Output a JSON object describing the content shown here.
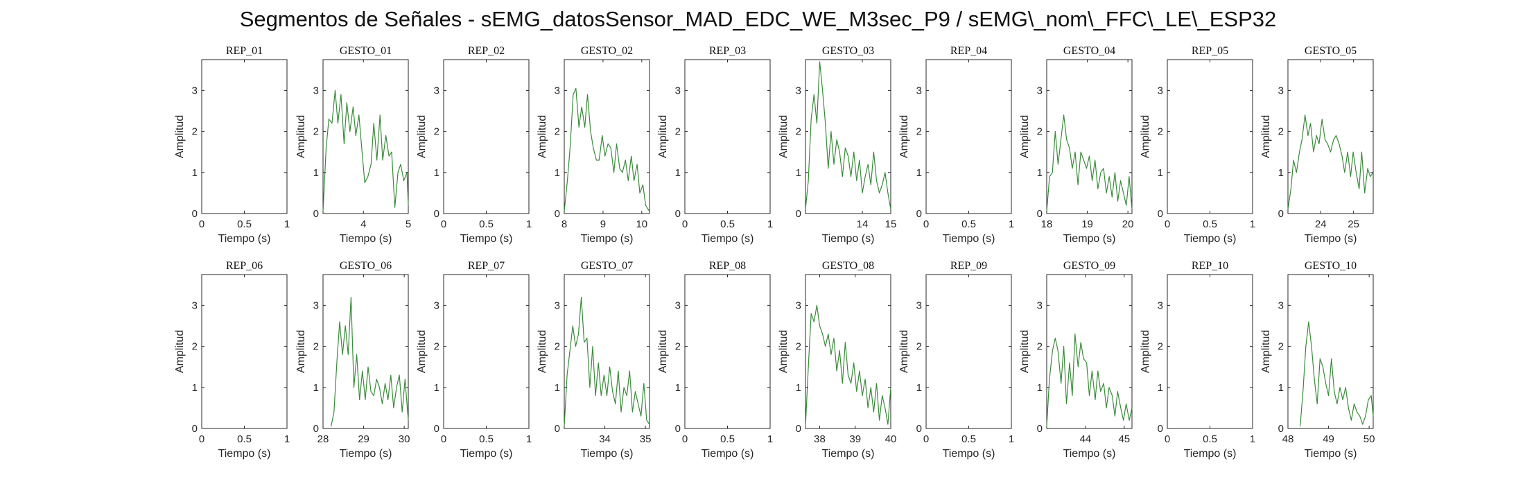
{
  "figure": {
    "title": "Segmentos de Señales - sEMG_datosSensor_MAD_EDC_WE_M3sec_P9 / sEMG\\_nom\\_FFC\\_LE\\_ESP32"
  },
  "colors": {
    "signal": "#3a8a3a",
    "axis": "#262626",
    "text": "#262626",
    "background": "#ffffff"
  },
  "chart_data": [
    {
      "type": "line",
      "title": "REP_01",
      "xlabel": "Tiempo (s)",
      "ylabel": "Amplitud",
      "xlim": [
        0,
        1
      ],
      "ylim": [
        0,
        3.75
      ],
      "xticks": [
        0,
        0.5,
        1
      ],
      "xticklabels": [
        "0",
        "0.5",
        "1"
      ],
      "yticks": [
        0,
        1,
        2,
        3
      ],
      "x": [],
      "y": []
    },
    {
      "type": "line",
      "title": "GESTO_01",
      "xlabel": "Tiempo (s)",
      "ylabel": "Amplitud",
      "xlim": [
        3.1,
        5.0
      ],
      "ylim": [
        0,
        3.75
      ],
      "xticks": [
        4,
        5
      ],
      "xticklabels": [
        "4",
        "5"
      ],
      "yticks": [
        0,
        1,
        2,
        3
      ],
      "x": [
        3.1,
        3.17,
        3.23,
        3.3,
        3.37,
        3.43,
        3.5,
        3.57,
        3.63,
        3.7,
        3.77,
        3.83,
        3.9,
        3.97,
        4.03,
        4.1,
        4.17,
        4.23,
        4.3,
        4.37,
        4.43,
        4.5,
        4.57,
        4.63,
        4.7,
        4.77,
        4.83,
        4.9,
        4.97,
        5.0
      ],
      "y": [
        0.05,
        1.6,
        2.3,
        2.2,
        3.0,
        2.2,
        2.9,
        1.7,
        2.7,
        2.0,
        2.6,
        1.9,
        2.4,
        1.5,
        0.75,
        0.9,
        1.2,
        2.2,
        1.3,
        2.4,
        1.3,
        1.9,
        1.4,
        1.5,
        0.15,
        1.0,
        1.2,
        0.8,
        1.0,
        0.2
      ]
    },
    {
      "type": "line",
      "title": "REP_02",
      "xlabel": "Tiempo (s)",
      "ylabel": "Amplitud",
      "xlim": [
        0,
        1
      ],
      "ylim": [
        0,
        3.75
      ],
      "xticks": [
        0,
        0.5,
        1
      ],
      "xticklabels": [
        "0",
        "0.5",
        "1"
      ],
      "yticks": [
        0,
        1,
        2,
        3
      ],
      "x": [],
      "y": []
    },
    {
      "type": "line",
      "title": "GESTO_02",
      "xlabel": "Tiempo (s)",
      "ylabel": "Amplitud",
      "xlim": [
        8.0,
        10.2
      ],
      "ylim": [
        0,
        3.75
      ],
      "xticks": [
        8,
        9,
        10
      ],
      "xticklabels": [
        "8",
        "9",
        "10"
      ],
      "yticks": [
        0,
        1,
        2,
        3
      ],
      "x": [
        8.0,
        8.08,
        8.15,
        8.23,
        8.3,
        8.38,
        8.45,
        8.53,
        8.6,
        8.68,
        8.75,
        8.83,
        8.9,
        8.98,
        9.05,
        9.13,
        9.2,
        9.28,
        9.35,
        9.43,
        9.5,
        9.58,
        9.65,
        9.73,
        9.8,
        9.88,
        9.95,
        10.03,
        10.1,
        10.2
      ],
      "y": [
        0.05,
        0.8,
        1.6,
        2.9,
        3.05,
        2.1,
        2.6,
        2.1,
        2.9,
        2.0,
        1.6,
        1.3,
        1.3,
        1.9,
        1.4,
        1.7,
        1.6,
        1.0,
        1.7,
        1.1,
        1.0,
        1.3,
        0.8,
        1.4,
        0.8,
        1.2,
        0.5,
        0.7,
        0.2,
        0.05
      ]
    },
    {
      "type": "line",
      "title": "REP_03",
      "xlabel": "Tiempo (s)",
      "ylabel": "Amplitud",
      "xlim": [
        0,
        1
      ],
      "ylim": [
        0,
        3.75
      ],
      "xticks": [
        0,
        0.5,
        1
      ],
      "xticklabels": [
        "0",
        "0.5",
        "1"
      ],
      "yticks": [
        0,
        1,
        2,
        3
      ],
      "x": [],
      "y": []
    },
    {
      "type": "line",
      "title": "GESTO_03",
      "xlabel": "Tiempo (s)",
      "ylabel": "Amplitud",
      "xlim": [
        12.0,
        15.0
      ],
      "ylim": [
        0,
        3.75
      ],
      "xticks": [
        14,
        15
      ],
      "xticklabels": [
        "14",
        "15"
      ],
      "yticks": [
        0,
        1,
        2,
        3
      ],
      "x": [
        12.0,
        12.1,
        12.2,
        12.3,
        12.4,
        12.5,
        12.6,
        12.7,
        12.8,
        12.9,
        13.0,
        13.1,
        13.2,
        13.3,
        13.4,
        13.5,
        13.6,
        13.7,
        13.8,
        13.9,
        14.0,
        14.1,
        14.2,
        14.3,
        14.4,
        14.5,
        14.6,
        14.7,
        14.8,
        14.9,
        15.0
      ],
      "y": [
        0.1,
        0.8,
        2.3,
        2.9,
        2.2,
        3.7,
        3.0,
        2.2,
        1.1,
        2.0,
        1.2,
        1.8,
        1.5,
        0.9,
        1.6,
        1.4,
        0.9,
        1.5,
        0.8,
        1.3,
        0.5,
        0.9,
        1.2,
        0.7,
        1.5,
        0.8,
        0.5,
        0.7,
        1.0,
        0.5,
        0.1
      ]
    },
    {
      "type": "line",
      "title": "REP_04",
      "xlabel": "Tiempo (s)",
      "ylabel": "Amplitud",
      "xlim": [
        0,
        1
      ],
      "ylim": [
        0,
        3.75
      ],
      "xticks": [
        0,
        0.5,
        1
      ],
      "xticklabels": [
        "0",
        "0.5",
        "1"
      ],
      "yticks": [
        0,
        1,
        2,
        3
      ],
      "x": [],
      "y": []
    },
    {
      "type": "line",
      "title": "GESTO_04",
      "xlabel": "Tiempo (s)",
      "ylabel": "Amplitud",
      "xlim": [
        18.0,
        20.1
      ],
      "ylim": [
        0,
        3.75
      ],
      "xticks": [
        18,
        19,
        20
      ],
      "xticklabels": [
        "18",
        "19",
        "20"
      ],
      "yticks": [
        0,
        1,
        2,
        3
      ],
      "x": [
        18.0,
        18.07,
        18.14,
        18.21,
        18.28,
        18.35,
        18.42,
        18.49,
        18.56,
        18.63,
        18.7,
        18.77,
        18.84,
        18.91,
        18.98,
        19.05,
        19.12,
        19.19,
        19.26,
        19.33,
        19.4,
        19.47,
        19.54,
        19.61,
        19.68,
        19.75,
        19.82,
        19.89,
        19.96,
        20.03,
        20.1
      ],
      "y": [
        0.05,
        0.9,
        1.0,
        2.0,
        1.2,
        1.8,
        2.4,
        1.8,
        1.6,
        1.1,
        1.5,
        0.7,
        1.5,
        1.3,
        1.1,
        1.4,
        0.8,
        1.3,
        0.6,
        1.0,
        1.1,
        0.5,
        0.9,
        0.4,
        1.0,
        0.3,
        0.8,
        0.5,
        0.2,
        0.9,
        0.1
      ]
    },
    {
      "type": "line",
      "title": "REP_05",
      "xlabel": "Tiempo (s)",
      "ylabel": "Amplitud",
      "xlim": [
        0,
        1
      ],
      "ylim": [
        0,
        3.75
      ],
      "xticks": [
        0,
        0.5,
        1
      ],
      "xticklabels": [
        "0",
        "0.5",
        "1"
      ],
      "yticks": [
        0,
        1,
        2,
        3
      ],
      "x": [],
      "y": []
    },
    {
      "type": "line",
      "title": "GESTO_05",
      "xlabel": "Tiempo (s)",
      "ylabel": "Amplitud",
      "xlim": [
        23.0,
        25.6
      ],
      "ylim": [
        0,
        3.75
      ],
      "xticks": [
        24,
        25
      ],
      "xticklabels": [
        "24",
        "25"
      ],
      "yticks": [
        0,
        1,
        2,
        3
      ],
      "x": [
        23.0,
        23.09,
        23.17,
        23.26,
        23.35,
        23.43,
        23.52,
        23.61,
        23.69,
        23.78,
        23.87,
        23.95,
        24.04,
        24.13,
        24.21,
        24.3,
        24.39,
        24.47,
        24.56,
        24.65,
        24.73,
        24.82,
        24.91,
        24.99,
        25.08,
        25.17,
        25.25,
        25.34,
        25.43,
        25.51,
        25.6
      ],
      "y": [
        0.1,
        0.6,
        1.3,
        1.0,
        1.5,
        1.8,
        2.4,
        1.9,
        2.2,
        1.5,
        1.9,
        1.7,
        2.3,
        1.8,
        1.7,
        1.5,
        1.8,
        1.9,
        1.7,
        1.4,
        1.0,
        1.5,
        0.9,
        1.5,
        1.0,
        0.6,
        1.5,
        0.5,
        1.1,
        0.9,
        1.0
      ]
    },
    {
      "type": "line",
      "title": "REP_06",
      "xlabel": "Tiempo (s)",
      "ylabel": "Amplitud",
      "xlim": [
        0,
        1
      ],
      "ylim": [
        0,
        3.75
      ],
      "xticks": [
        0,
        0.5,
        1
      ],
      "xticklabels": [
        "0",
        "0.5",
        "1"
      ],
      "yticks": [
        0,
        1,
        2,
        3
      ],
      "x": [],
      "y": []
    },
    {
      "type": "line",
      "title": "GESTO_06",
      "xlabel": "Tiempo (s)",
      "ylabel": "Amplitud",
      "xlim": [
        28.0,
        30.1
      ],
      "ylim": [
        0,
        3.75
      ],
      "xticks": [
        28,
        29,
        30
      ],
      "xticklabels": [
        "28",
        "29",
        "30"
      ],
      "yticks": [
        0,
        1,
        2,
        3
      ],
      "x": [
        28.2,
        28.27,
        28.34,
        28.41,
        28.48,
        28.55,
        28.62,
        28.69,
        28.76,
        28.83,
        28.9,
        28.97,
        29.04,
        29.11,
        29.18,
        29.25,
        29.32,
        29.39,
        29.46,
        29.53,
        29.6,
        29.67,
        29.74,
        29.81,
        29.88,
        29.95,
        30.02,
        30.1
      ],
      "y": [
        0.05,
        0.4,
        1.6,
        2.6,
        1.8,
        2.5,
        1.8,
        3.2,
        1.0,
        1.8,
        0.7,
        1.4,
        0.7,
        1.5,
        0.9,
        0.8,
        1.2,
        1.0,
        0.6,
        1.1,
        0.7,
        1.3,
        0.5,
        1.0,
        1.3,
        0.4,
        1.2,
        0.2
      ]
    },
    {
      "type": "line",
      "title": "REP_07",
      "xlabel": "Tiempo (s)",
      "ylabel": "Amplitud",
      "xlim": [
        0,
        1
      ],
      "ylim": [
        0,
        3.75
      ],
      "xticks": [
        0,
        0.5,
        1
      ],
      "xticklabels": [
        "0",
        "0.5",
        "1"
      ],
      "yticks": [
        0,
        1,
        2,
        3
      ],
      "x": [],
      "y": []
    },
    {
      "type": "line",
      "title": "GESTO_07",
      "xlabel": "Tiempo (s)",
      "ylabel": "Amplitud",
      "xlim": [
        33.0,
        35.1
      ],
      "ylim": [
        0,
        3.75
      ],
      "xticks": [
        34,
        35
      ],
      "xticklabels": [
        "34",
        "35"
      ],
      "yticks": [
        0,
        1,
        2,
        3
      ],
      "x": [
        33.0,
        33.07,
        33.14,
        33.21,
        33.28,
        33.35,
        33.42,
        33.49,
        33.56,
        33.63,
        33.7,
        33.77,
        33.84,
        33.91,
        33.98,
        34.05,
        34.12,
        34.19,
        34.26,
        34.33,
        34.4,
        34.47,
        34.54,
        34.61,
        34.68,
        34.75,
        34.82,
        34.89,
        34.96,
        35.03,
        35.1
      ],
      "y": [
        0.05,
        1.3,
        1.9,
        2.5,
        2.0,
        2.3,
        3.2,
        2.1,
        2.2,
        1.0,
        2.0,
        0.8,
        1.6,
        0.8,
        1.3,
        0.8,
        1.5,
        0.9,
        0.6,
        1.4,
        0.4,
        1.0,
        0.8,
        1.4,
        0.4,
        0.9,
        0.6,
        0.3,
        1.1,
        0.2,
        0.1
      ]
    },
    {
      "type": "line",
      "title": "REP_08",
      "xlabel": "Tiempo (s)",
      "ylabel": "Amplitud",
      "xlim": [
        0,
        1
      ],
      "ylim": [
        0,
        3.75
      ],
      "xticks": [
        0,
        0.5,
        1
      ],
      "xticklabels": [
        "0",
        "0.5",
        "1"
      ],
      "yticks": [
        0,
        1,
        2,
        3
      ],
      "x": [],
      "y": []
    },
    {
      "type": "line",
      "title": "GESTO_08",
      "xlabel": "Tiempo (s)",
      "ylabel": "Amplitud",
      "xlim": [
        37.6,
        40.0
      ],
      "ylim": [
        0,
        3.75
      ],
      "xticks": [
        38,
        39,
        40
      ],
      "xticklabels": [
        "38",
        "39",
        "40"
      ],
      "yticks": [
        0,
        1,
        2,
        3
      ],
      "x": [
        37.6,
        37.68,
        37.76,
        37.84,
        37.92,
        38.0,
        38.08,
        38.16,
        38.24,
        38.32,
        38.4,
        38.48,
        38.56,
        38.64,
        38.72,
        38.8,
        38.88,
        38.96,
        39.04,
        39.12,
        39.2,
        39.28,
        39.36,
        39.44,
        39.52,
        39.6,
        39.68,
        39.76,
        39.84,
        39.92,
        40.0
      ],
      "y": [
        0.05,
        1.5,
        2.8,
        2.6,
        3.0,
        2.5,
        2.3,
        2.0,
        2.3,
        1.8,
        2.2,
        1.4,
        1.9,
        1.1,
        2.1,
        1.3,
        1.1,
        1.6,
        0.9,
        1.4,
        0.8,
        1.2,
        0.5,
        1.0,
        0.4,
        1.1,
        0.2,
        0.8,
        0.5,
        0.1,
        1.0
      ]
    },
    {
      "type": "line",
      "title": "REP_09",
      "xlabel": "Tiempo (s)",
      "ylabel": "Amplitud",
      "xlim": [
        0,
        1
      ],
      "ylim": [
        0,
        3.75
      ],
      "xticks": [
        0,
        0.5,
        1
      ],
      "xticklabels": [
        "0",
        "0.5",
        "1"
      ],
      "yticks": [
        0,
        1,
        2,
        3
      ],
      "x": [],
      "y": []
    },
    {
      "type": "line",
      "title": "GESTO_09",
      "xlabel": "Tiempo (s)",
      "ylabel": "Amplitud",
      "xlim": [
        43.0,
        45.2
      ],
      "ylim": [
        0,
        3.75
      ],
      "xticks": [
        44,
        45
      ],
      "xticklabels": [
        "44",
        "45"
      ],
      "yticks": [
        0,
        1,
        2,
        3
      ],
      "x": [
        43.0,
        43.07,
        43.15,
        43.22,
        43.29,
        43.37,
        43.44,
        43.51,
        43.59,
        43.66,
        43.73,
        43.81,
        43.88,
        43.95,
        44.03,
        44.1,
        44.17,
        44.25,
        44.32,
        44.39,
        44.47,
        44.54,
        44.61,
        44.69,
        44.76,
        44.83,
        44.91,
        44.98,
        45.05,
        45.13,
        45.2
      ],
      "y": [
        0.05,
        1.2,
        1.9,
        2.2,
        1.9,
        1.1,
        2.0,
        0.6,
        1.6,
        0.8,
        2.3,
        1.5,
        2.1,
        1.7,
        1.6,
        0.8,
        1.4,
        0.7,
        1.4,
        0.9,
        1.1,
        0.5,
        1.0,
        0.8,
        0.3,
        0.9,
        0.5,
        0.2,
        0.6,
        0.2,
        0.5
      ]
    },
    {
      "type": "line",
      "title": "REP_10",
      "xlabel": "Tiempo (s)",
      "ylabel": "Amplitud",
      "xlim": [
        0,
        1
      ],
      "ylim": [
        0,
        3.75
      ],
      "xticks": [
        0,
        0.5,
        1
      ],
      "xticklabels": [
        "0",
        "0.5",
        "1"
      ],
      "yticks": [
        0,
        1,
        2,
        3
      ],
      "x": [],
      "y": []
    },
    {
      "type": "line",
      "title": "GESTO_10",
      "xlabel": "Tiempo (s)",
      "ylabel": "Amplitud",
      "xlim": [
        48.0,
        50.1
      ],
      "ylim": [
        0,
        3.75
      ],
      "xticks": [
        48,
        49,
        50
      ],
      "xticklabels": [
        "48",
        "49",
        "50"
      ],
      "yticks": [
        0,
        1,
        2,
        3
      ],
      "x": [
        48.3,
        48.37,
        48.44,
        48.51,
        48.58,
        48.65,
        48.72,
        48.79,
        48.86,
        48.93,
        49.0,
        49.07,
        49.14,
        49.21,
        49.28,
        49.35,
        49.42,
        49.49,
        49.56,
        49.63,
        49.7,
        49.77,
        49.84,
        49.91,
        49.98,
        50.05,
        50.1
      ],
      "y": [
        0.05,
        0.9,
        2.0,
        2.6,
        2.0,
        1.2,
        0.6,
        1.7,
        1.5,
        1.1,
        0.8,
        1.7,
        0.9,
        0.6,
        1.0,
        0.7,
        1.0,
        0.5,
        0.2,
        0.6,
        0.4,
        0.3,
        0.1,
        0.3,
        0.7,
        0.8,
        0.3
      ]
    }
  ]
}
